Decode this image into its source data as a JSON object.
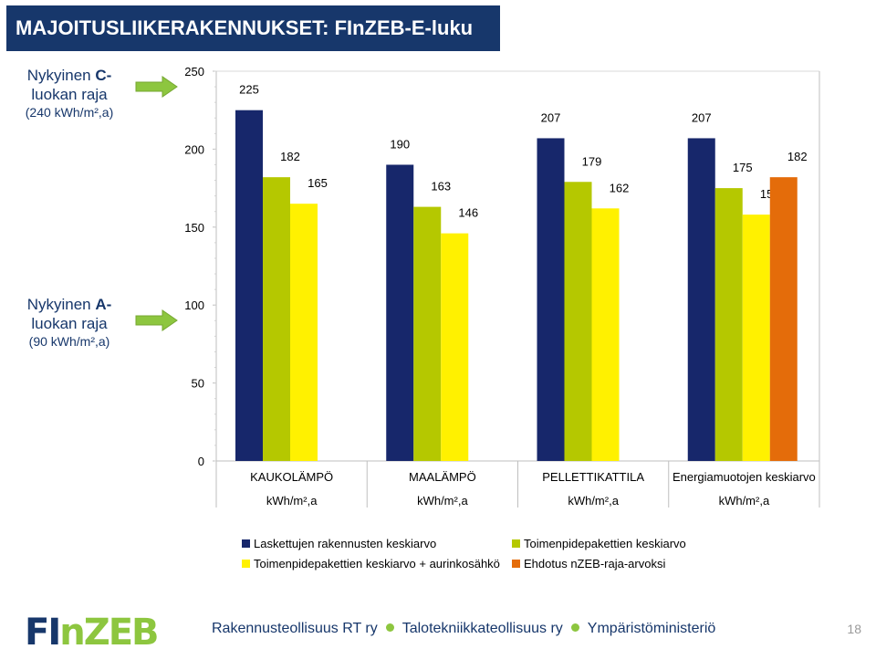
{
  "slide": {
    "title": "MAJOITUSLIIKERAKENNUKSET: FInZEB-E-luku",
    "page_number": "18"
  },
  "side_labels": {
    "c_class": {
      "line1_prefix": "Nykyinen ",
      "line1_bold": "C-",
      "line2": "luokan raja",
      "sub": "(240 kWh/m²,a)"
    },
    "a_class": {
      "line1_prefix": "Nykyinen ",
      "line1_bold": "A-",
      "line2": "luokan raja",
      "sub": "(90 kWh/m²,a)"
    }
  },
  "chart_data": {
    "type": "bar",
    "categories": [
      {
        "name": "KAUKOLÄMPÖ",
        "unit": "kWh/m²,a"
      },
      {
        "name": "MAALÄMPÖ",
        "unit": "kWh/m²,a"
      },
      {
        "name": "PELLETTIKATTILA",
        "unit": "kWh/m²,a"
      },
      {
        "name": "Energiamuotojen keskiarvo",
        "unit": "kWh/m²,a"
      }
    ],
    "series": [
      {
        "name": "Laskettujen rakennusten keskiarvo",
        "color": "#17276b",
        "values": [
          225,
          190,
          207,
          207
        ]
      },
      {
        "name": "Toimenpidepakettien keskiarvo",
        "color": "#b5c800",
        "values": [
          182,
          163,
          179,
          175
        ]
      },
      {
        "name": "Toimenpidepakettien keskiarvo + aurinkosähkö",
        "color": "#fff100",
        "values": [
          165,
          146,
          162,
          158
        ]
      },
      {
        "name": "Ehdotus nZEB-raja-arvoksi",
        "color": "#e46c0a",
        "values": [
          null,
          null,
          null,
          182
        ]
      }
    ],
    "yticks": [
      0,
      50,
      100,
      150,
      200,
      250
    ],
    "ylim": [
      0,
      250
    ],
    "grid": false,
    "legend_position": "bottom"
  },
  "footer": {
    "logo": "FInZEB",
    "partners": [
      "Rakennusteollisuus RT ry",
      "Talotekniikkateollisuus ry",
      "Ympäristöministeriö"
    ]
  },
  "colors": {
    "title_bg": "#17376b",
    "arrow": "#8dc63f",
    "logo_dark": "#17376b",
    "logo_green": "#8dc63f"
  }
}
